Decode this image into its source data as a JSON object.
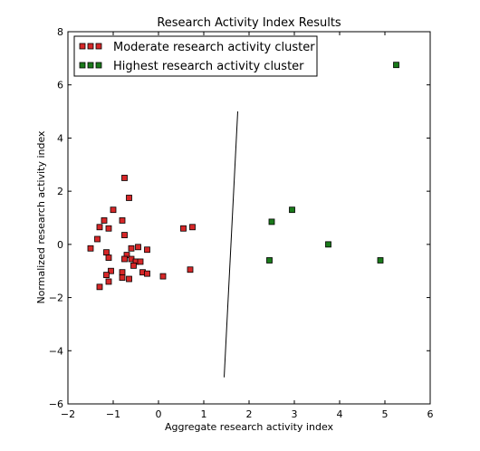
{
  "chart_data": {
    "type": "scatter",
    "title": "Research Activity Index Results",
    "xlabel": "Aggregate research activity index",
    "ylabel": "Normalized research activity index",
    "xlim": [
      -2,
      6
    ],
    "ylim": [
      -6,
      8
    ],
    "xticks": [
      -2,
      -1,
      0,
      1,
      2,
      3,
      4,
      5,
      6
    ],
    "yticks": [
      -6,
      -4,
      -2,
      0,
      2,
      4,
      6,
      8
    ],
    "grid": false,
    "legend_position": "top-left",
    "series": [
      {
        "name": "Moderate research activity cluster",
        "color": "#d62728",
        "marker": "square",
        "points": [
          [
            -0.75,
            2.5
          ],
          [
            -0.65,
            1.75
          ],
          [
            -1.0,
            1.3
          ],
          [
            -0.8,
            0.9
          ],
          [
            -1.2,
            0.9
          ],
          [
            -1.3,
            0.65
          ],
          [
            -1.1,
            0.6
          ],
          [
            -0.75,
            0.35
          ],
          [
            -1.35,
            0.2
          ],
          [
            -1.5,
            -0.15
          ],
          [
            -0.6,
            -0.15
          ],
          [
            -0.45,
            -0.1
          ],
          [
            -0.25,
            -0.2
          ],
          [
            -1.15,
            -0.3
          ],
          [
            -0.7,
            -0.4
          ],
          [
            -1.1,
            -0.5
          ],
          [
            -0.75,
            -0.55
          ],
          [
            -0.6,
            -0.55
          ],
          [
            -0.5,
            -0.65
          ],
          [
            -0.4,
            -0.65
          ],
          [
            -0.55,
            -0.8
          ],
          [
            -1.05,
            -1.0
          ],
          [
            -0.8,
            -1.05
          ],
          [
            -0.35,
            -1.05
          ],
          [
            -0.25,
            -1.1
          ],
          [
            -1.15,
            -1.15
          ],
          [
            -0.8,
            -1.25
          ],
          [
            -0.65,
            -1.3
          ],
          [
            -1.1,
            -1.4
          ],
          [
            -1.3,
            -1.6
          ],
          [
            0.1,
            -1.2
          ],
          [
            0.55,
            0.6
          ],
          [
            0.75,
            0.65
          ],
          [
            0.7,
            -0.95
          ]
        ]
      },
      {
        "name": "Highest research activity cluster",
        "color": "#1a7a1a",
        "marker": "square",
        "points": [
          [
            5.25,
            6.75
          ],
          [
            2.5,
            0.85
          ],
          [
            2.95,
            1.3
          ],
          [
            3.75,
            0.0
          ],
          [
            2.45,
            -0.6
          ],
          [
            4.9,
            -0.6
          ]
        ]
      }
    ],
    "lines": [
      {
        "color": "#000000",
        "points": [
          [
            1.45,
            -5.0
          ],
          [
            1.75,
            5.0
          ]
        ]
      }
    ]
  }
}
